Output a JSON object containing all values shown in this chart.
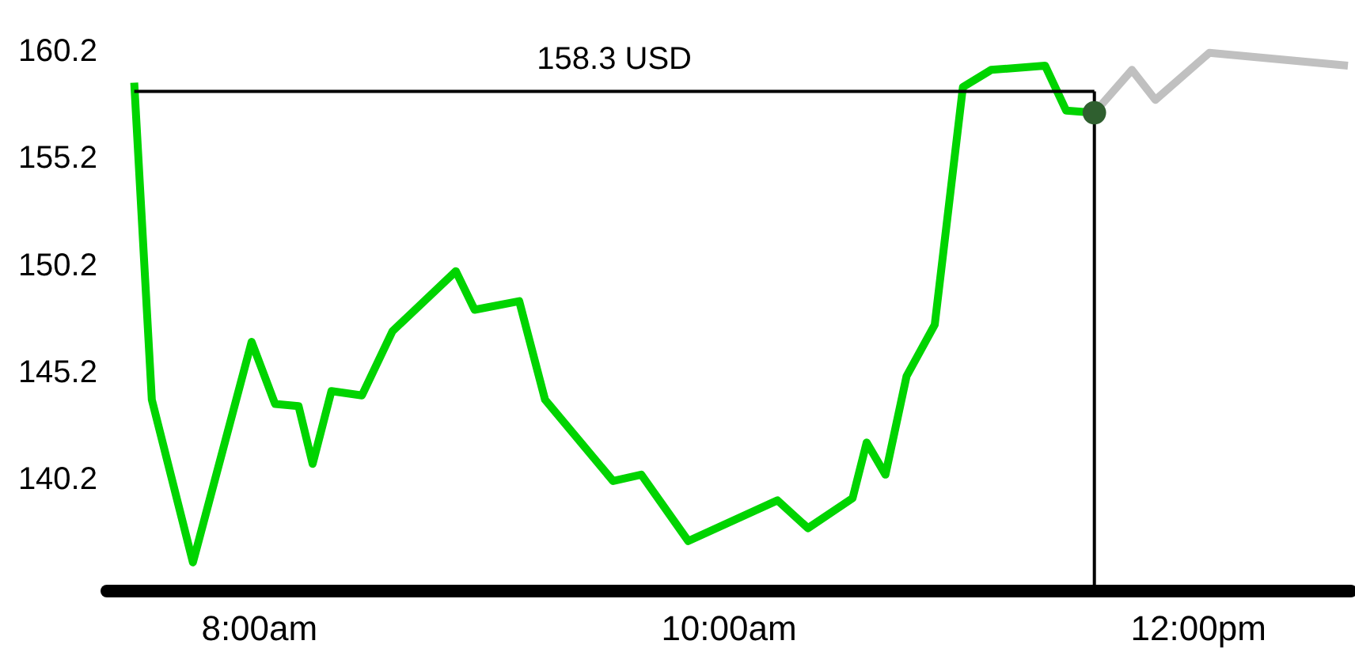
{
  "chart_data": {
    "type": "line",
    "xlim": [
      7.35,
      12.65
    ],
    "ylim": [
      135,
      160.2
    ],
    "xticks": [
      {
        "value": 8,
        "label": "8:00am"
      },
      {
        "value": 10,
        "label": "10:00am"
      },
      {
        "value": 12,
        "label": "12:00pm"
      }
    ],
    "yticks": [
      140.2,
      145.2,
      150.2,
      155.2,
      160.2
    ],
    "grid": false,
    "line_style": "solid",
    "series": [
      {
        "color": "#00d400",
        "x": [
          7.47,
          7.545,
          7.72,
          7.97,
          8.07,
          8.17,
          8.23,
          8.31,
          8.44,
          8.57,
          8.84,
          8.92,
          9.11,
          9.22,
          9.51,
          9.63,
          9.83,
          10.21,
          10.34,
          10.53,
          10.59,
          10.67,
          10.76,
          10.88,
          11.0,
          11.12,
          11.35,
          11.44,
          11.56
        ],
        "values": [
          158.7,
          143.9,
          136.3,
          146.6,
          143.7,
          143.6,
          140.9,
          144.3,
          144.1,
          147.1,
          149.9,
          148.1,
          148.5,
          143.9,
          140.1,
          140.4,
          137.3,
          139.2,
          137.9,
          139.3,
          141.9,
          140.4,
          145.0,
          147.4,
          158.5,
          159.3,
          159.5,
          157.4,
          157.3
        ]
      },
      {
        "color": "#c0c0c0",
        "x": [
          11.56,
          11.72,
          11.82,
          12.05,
          12.64
        ],
        "values": [
          157.3,
          159.3,
          157.9,
          160.1,
          159.5
        ]
      },
      {
        "type": "scatter",
        "color": "#2f5f2f",
        "x": [
          11.56
        ],
        "values": [
          157.3
        ]
      }
    ],
    "ref_lines": [
      {
        "axis": "y",
        "value": 158.3,
        "label": "158.3 USD",
        "color": "#000000"
      },
      {
        "axis": "x",
        "value": 11.56,
        "color": "#000000"
      }
    ]
  }
}
